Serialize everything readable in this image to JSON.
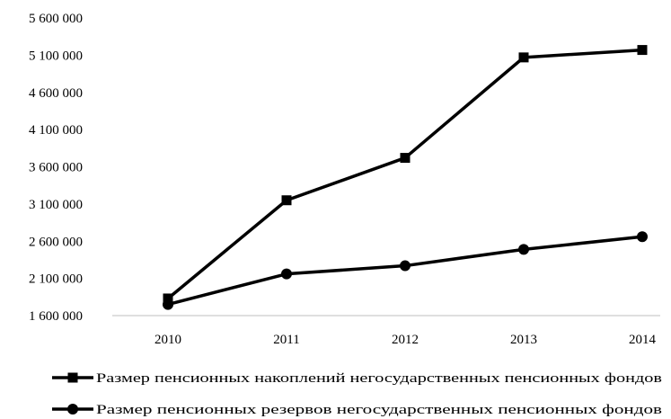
{
  "chart_data": {
    "type": "line",
    "title": "",
    "xlabel": "",
    "ylabel": "",
    "categories": [
      "2010",
      "2011",
      "2012",
      "2013",
      "2014"
    ],
    "ylim": [
      1600000,
      5600000
    ],
    "yticks": [
      1600000,
      2100000,
      2600000,
      3100000,
      3600000,
      4100000,
      4600000,
      5100000,
      5600000
    ],
    "ytick_labels": [
      "1 600 000",
      "2 100 000",
      "2 600 000",
      "3 100 000",
      "3 600 000",
      "4 100 000",
      "4 600 000",
      "5 100 000",
      "5 600 000"
    ],
    "grid": false,
    "legend_position": "bottom",
    "series": [
      {
        "name": "Размер пенсионных накоплений негосударственных пенсионных фондов",
        "marker": "square",
        "color": "#000000",
        "values": [
          1830000,
          3150000,
          3720000,
          5070000,
          5170000
        ]
      },
      {
        "name": "Размер пенсионных резервов негосударственных пенсионных фондов",
        "marker": "circle",
        "color": "#000000",
        "values": [
          1750000,
          2160000,
          2270000,
          2490000,
          2660000
        ]
      }
    ]
  }
}
